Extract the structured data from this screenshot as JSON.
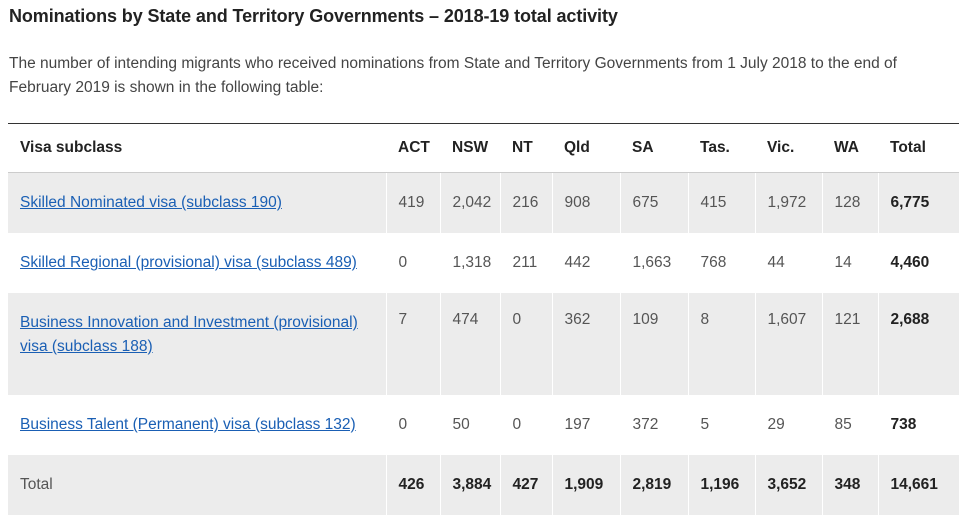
{
  "heading": "Nominations by State and Territory Governments – 2018-19 total activity",
  "intro": "The number of intending migrants who received nominations from State and Territory Governments from 1 July 2018 to the end of February 2019 is shown in the following table:",
  "table": {
    "headers": [
      "Visa subclass",
      "ACT",
      "NSW",
      "NT",
      "Qld",
      "SA",
      "Tas.",
      "Vic.",
      "WA",
      "Total"
    ],
    "rows": [
      {
        "label": "Skilled Nominated visa (subclass 190)",
        "values": [
          "419",
          "2,042",
          "216",
          "908",
          "675",
          "415",
          "1,972",
          "128"
        ],
        "total": "6,775"
      },
      {
        "label": "Skilled Regional (provisional) visa (subclass 489)",
        "values": [
          "0",
          "1,318",
          "211",
          "442",
          "1,663",
          "768",
          "44",
          "14"
        ],
        "total": "4,460"
      },
      {
        "label": "Business Innovation and Investment (provisional) visa (subclass 188)",
        "values": [
          "7",
          "474",
          "0",
          "362",
          "109",
          "8",
          "1,607",
          "121"
        ],
        "total": "2,688"
      },
      {
        "label": "Business Talent (Permanent) visa (subclass 132)",
        "values": [
          "0",
          "50",
          "0",
          "197",
          "372",
          "5",
          "29",
          "85"
        ],
        "total": "738"
      }
    ],
    "total_row": {
      "label": "Total",
      "values": [
        "426",
        "3,884",
        "427",
        "1,909",
        "2,819",
        "1,196",
        "3,652",
        "348"
      ],
      "total": "14,661"
    }
  },
  "colors": {
    "link": "#1a5fb4",
    "row_shade": "#ececec"
  }
}
